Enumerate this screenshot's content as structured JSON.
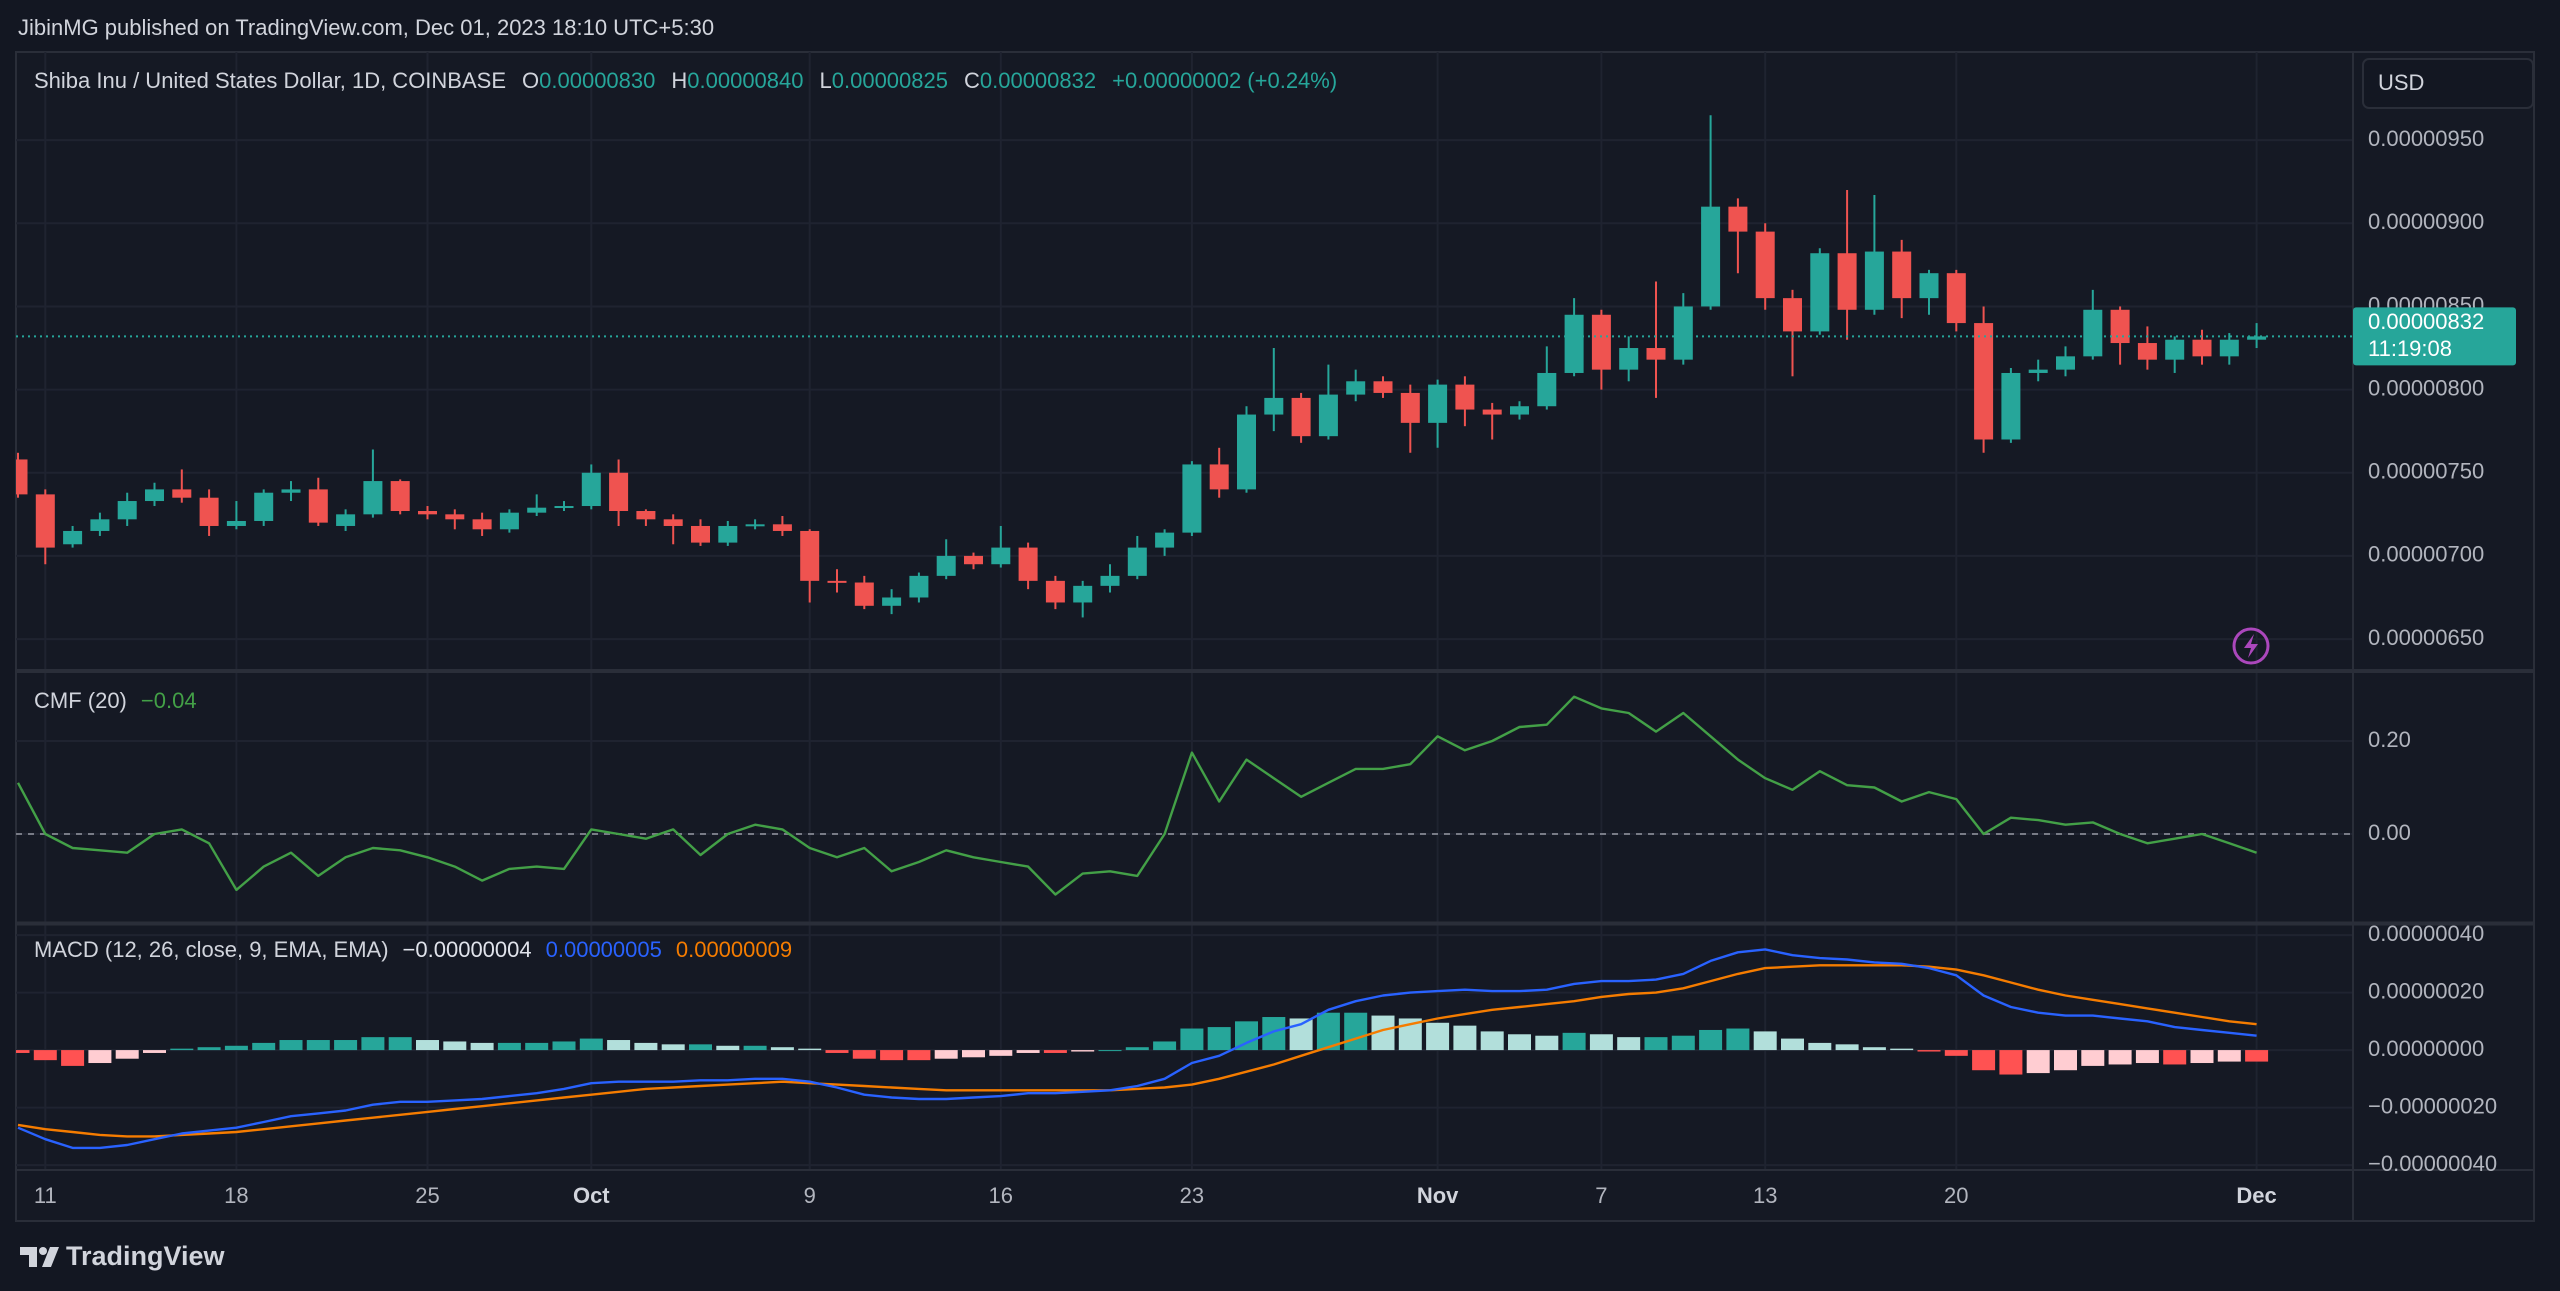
{
  "header": {
    "published": "JibinMG published on TradingView.com, Dec 01, 2023 18:10 UTC+5:30"
  },
  "footer": {
    "brand": "TradingView"
  },
  "chart_data": [
    {
      "type": "candlestick",
      "title": "Shiba Inu / United States Dollar, 1D, COINBASE",
      "ohlc_legend": [
        {
          "label": "O",
          "value": "0.00000830"
        },
        {
          "label": "H",
          "value": "0.00000840"
        },
        {
          "label": "L",
          "value": "0.00000825"
        },
        {
          "label": "C",
          "value": "0.00000832"
        }
      ],
      "change": "+0.00000002 (+0.24%)",
      "currency": "USD",
      "last_price_label": "0.00000832",
      "countdown": "11:19:08",
      "up_color": "#26a69a",
      "down_color": "#ef5350",
      "open": [
        7.58e-06,
        7.37e-06,
        7.07e-06,
        7.15e-06,
        7.22e-06,
        7.33e-06,
        7.4e-06,
        7.35e-06,
        7.18e-06,
        7.21e-06,
        7.38e-06,
        7.4e-06,
        7.18e-06,
        7.25e-06,
        7.45e-06,
        7.27e-06,
        7.25e-06,
        7.22e-06,
        7.16e-06,
        7.26e-06,
        7.29e-06,
        7.3e-06,
        7.5e-06,
        7.27e-06,
        7.22e-06,
        7.18e-06,
        7.08e-06,
        7.18e-06,
        7.19e-06,
        7.15e-06,
        6.85e-06,
        6.84e-06,
        6.7e-06,
        6.75e-06,
        6.88e-06,
        7e-06,
        6.95e-06,
        7.05e-06,
        6.85e-06,
        6.72e-06,
        6.82e-06,
        6.88e-06,
        7.05e-06,
        7.14e-06,
        7.55e-06,
        7.4e-06,
        7.85e-06,
        7.95e-06,
        7.72e-06,
        7.97e-06,
        8.05e-06,
        7.98e-06,
        7.8e-06,
        8.03e-06,
        7.88e-06,
        7.85e-06,
        7.9e-06,
        8.1e-06,
        8.45e-06,
        8.12e-06,
        8.25e-06,
        8.18e-06,
        8.5e-06,
        9.1e-06,
        8.95e-06,
        8.55e-06,
        8.35e-06,
        8.82e-06,
        8.48e-06,
        8.83e-06,
        8.55e-06,
        8.7e-06,
        8.4e-06,
        7.7e-06,
        8.1e-06,
        8.12e-06,
        8.2e-06,
        8.48e-06,
        8.28e-06,
        8.18e-06,
        8.3e-06,
        8.2e-06,
        8.3e-06
      ],
      "high": [
        7.62e-06,
        7.4e-06,
        7.18e-06,
        7.26e-06,
        7.38e-06,
        7.44e-06,
        7.52e-06,
        7.4e-06,
        7.33e-06,
        7.4e-06,
        7.45e-06,
        7.47e-06,
        7.28e-06,
        7.64e-06,
        7.46e-06,
        7.3e-06,
        7.28e-06,
        7.26e-06,
        7.28e-06,
        7.37e-06,
        7.33e-06,
        7.55e-06,
        7.58e-06,
        7.28e-06,
        7.25e-06,
        7.22e-06,
        7.21e-06,
        7.22e-06,
        7.24e-06,
        7.16e-06,
        6.92e-06,
        6.88e-06,
        6.8e-06,
        6.9e-06,
        7.1e-06,
        7.02e-06,
        7.18e-06,
        7.08e-06,
        6.88e-06,
        6.85e-06,
        6.95e-06,
        7.12e-06,
        7.16e-06,
        7.57e-06,
        7.65e-06,
        7.9e-06,
        8.25e-06,
        7.98e-06,
        8.15e-06,
        8.12e-06,
        8.08e-06,
        8.03e-06,
        8.06e-06,
        8.08e-06,
        7.92e-06,
        7.93e-06,
        8.26e-06,
        8.55e-06,
        8.48e-06,
        8.32e-06,
        8.65e-06,
        8.58e-06,
        9.65e-06,
        9.15e-06,
        9e-06,
        8.6e-06,
        8.85e-06,
        9.2e-06,
        9.17e-06,
        8.9e-06,
        8.72e-06,
        8.72e-06,
        8.5e-06,
        8.13e-06,
        8.18e-06,
        8.26e-06,
        8.6e-06,
        8.5e-06,
        8.38e-06,
        8.32e-06,
        8.36e-06,
        8.34e-06,
        8.4e-06
      ],
      "low": [
        7.35e-06,
        6.95e-06,
        7.05e-06,
        7.12e-06,
        7.18e-06,
        7.3e-06,
        7.32e-06,
        7.12e-06,
        7.16e-06,
        7.18e-06,
        7.33e-06,
        7.18e-06,
        7.15e-06,
        7.23e-06,
        7.25e-06,
        7.22e-06,
        7.16e-06,
        7.12e-06,
        7.14e-06,
        7.24e-06,
        7.27e-06,
        7.28e-06,
        7.18e-06,
        7.18e-06,
        7.07e-06,
        7.06e-06,
        7.06e-06,
        7.16e-06,
        7.12e-06,
        6.72e-06,
        6.78e-06,
        6.68e-06,
        6.65e-06,
        6.72e-06,
        6.86e-06,
        6.92e-06,
        6.93e-06,
        6.8e-06,
        6.68e-06,
        6.63e-06,
        6.78e-06,
        6.86e-06,
        7e-06,
        7.12e-06,
        7.35e-06,
        7.38e-06,
        7.75e-06,
        7.68e-06,
        7.7e-06,
        7.93e-06,
        7.95e-06,
        7.62e-06,
        7.65e-06,
        7.78e-06,
        7.7e-06,
        7.82e-06,
        7.88e-06,
        8.08e-06,
        8e-06,
        8.05e-06,
        7.95e-06,
        8.15e-06,
        8.48e-06,
        8.7e-06,
        8.48e-06,
        8.08e-06,
        8.33e-06,
        8.3e-06,
        8.45e-06,
        8.43e-06,
        8.45e-06,
        8.35e-06,
        7.62e-06,
        7.68e-06,
        8.05e-06,
        8.08e-06,
        8.18e-06,
        8.15e-06,
        8.12e-06,
        8.1e-06,
        8.15e-06,
        8.15e-06,
        8.25e-06
      ],
      "close": [
        7.37e-06,
        7.05e-06,
        7.15e-06,
        7.22e-06,
        7.33e-06,
        7.4e-06,
        7.35e-06,
        7.18e-06,
        7.21e-06,
        7.38e-06,
        7.4e-06,
        7.2e-06,
        7.25e-06,
        7.45e-06,
        7.27e-06,
        7.25e-06,
        7.22e-06,
        7.16e-06,
        7.26e-06,
        7.29e-06,
        7.3e-06,
        7.5e-06,
        7.27e-06,
        7.22e-06,
        7.18e-06,
        7.08e-06,
        7.18e-06,
        7.19e-06,
        7.15e-06,
        6.85e-06,
        6.84e-06,
        6.7e-06,
        6.75e-06,
        6.88e-06,
        7e-06,
        6.95e-06,
        7.05e-06,
        6.85e-06,
        6.72e-06,
        6.82e-06,
        6.88e-06,
        7.05e-06,
        7.14e-06,
        7.55e-06,
        7.4e-06,
        7.85e-06,
        7.95e-06,
        7.72e-06,
        7.97e-06,
        8.05e-06,
        7.98e-06,
        7.8e-06,
        8.03e-06,
        7.88e-06,
        7.85e-06,
        7.9e-06,
        8.1e-06,
        8.45e-06,
        8.12e-06,
        8.25e-06,
        8.18e-06,
        8.5e-06,
        9.1e-06,
        8.95e-06,
        8.55e-06,
        8.35e-06,
        8.82e-06,
        8.48e-06,
        8.83e-06,
        8.55e-06,
        8.7e-06,
        8.4e-06,
        7.7e-06,
        8.1e-06,
        8.12e-06,
        8.2e-06,
        8.48e-06,
        8.28e-06,
        8.18e-06,
        8.3e-06,
        8.2e-06,
        8.3e-06,
        8.32e-06
      ],
      "ylim": [
        6.32e-06,
        1.003e-05
      ],
      "yticks": [
        {
          "value": 6.5e-06,
          "label": "0.00000650"
        },
        {
          "value": 7e-06,
          "label": "0.00000700"
        },
        {
          "value": 7.5e-06,
          "label": "0.00000750"
        },
        {
          "value": 8e-06,
          "label": "0.00000800"
        },
        {
          "value": 8.5e-06,
          "label": "0.00000850"
        },
        {
          "value": 9e-06,
          "label": "0.00000900"
        },
        {
          "value": 9.5e-06,
          "label": "0.00000950"
        }
      ],
      "xticks": [
        {
          "value": 1,
          "label": "11"
        },
        {
          "value": 8,
          "label": "18"
        },
        {
          "value": 15,
          "label": "25"
        },
        {
          "value": 21,
          "label": "Oct"
        },
        {
          "value": 29,
          "label": "9"
        },
        {
          "value": 36,
          "label": "16"
        },
        {
          "value": 43,
          "label": "23"
        },
        {
          "value": 52,
          "label": "Nov"
        },
        {
          "value": 58,
          "label": "7"
        },
        {
          "value": 64,
          "label": "13"
        },
        {
          "value": 71,
          "label": "20"
        },
        {
          "value": 82,
          "label": "Dec"
        }
      ],
      "grid": true
    },
    {
      "type": "line",
      "title": "CMF (20)",
      "current": "−0.04",
      "color": "#43a047",
      "values": [
        0.11,
        0.0,
        -0.03,
        -0.035,
        -0.04,
        0.0,
        0.01,
        -0.02,
        -0.12,
        -0.07,
        -0.04,
        -0.09,
        -0.05,
        -0.03,
        -0.035,
        -0.05,
        -0.07,
        -0.1,
        -0.075,
        -0.07,
        -0.075,
        0.01,
        0.0,
        -0.01,
        0.01,
        -0.045,
        0.0,
        0.02,
        0.01,
        -0.03,
        -0.05,
        -0.03,
        -0.08,
        -0.06,
        -0.035,
        -0.05,
        -0.06,
        -0.07,
        -0.13,
        -0.085,
        -0.08,
        -0.09,
        0.0,
        0.175,
        0.07,
        0.16,
        0.12,
        0.08,
        0.11,
        0.14,
        0.14,
        0.15,
        0.21,
        0.18,
        0.2,
        0.23,
        0.235,
        0.295,
        0.27,
        0.26,
        0.22,
        0.26,
        0.21,
        0.16,
        0.12,
        0.095,
        0.135,
        0.105,
        0.1,
        0.07,
        0.09,
        0.075,
        0.0,
        0.035,
        0.03,
        0.02,
        0.025,
        0.0,
        -0.02,
        -0.01,
        0.0,
        -0.02,
        -0.04
      ],
      "baseline": 0,
      "ylim": [
        -0.189,
        0.346
      ],
      "yticks": [
        {
          "value": 0,
          "label": "0.00"
        },
        {
          "value": 0.2,
          "label": "0.20"
        }
      ]
    },
    {
      "type": "macd",
      "title": "MACD (12, 26, close, 9, EMA, EMA)",
      "histogram": {
        "value_label": "−0.00000004",
        "label_color": "#e0e3eb",
        "colors": {
          "up_rising": "#26a69a",
          "up_falling": "#b2dfdb",
          "down_falling": "#ff5252",
          "down_rising": "#ffcdd2"
        },
        "values": [
          -1e-08,
          -3.5e-08,
          -5.5e-08,
          -4.5e-08,
          -3e-08,
          -1e-08,
          5e-09,
          1e-08,
          1.5e-08,
          2.5e-08,
          3.5e-08,
          3.5e-08,
          3.5e-08,
          4.5e-08,
          4.5e-08,
          3.5e-08,
          3e-08,
          2.5e-08,
          2.5e-08,
          2.5e-08,
          3e-08,
          4e-08,
          3.5e-08,
          2.5e-08,
          2e-08,
          2e-08,
          1.5e-08,
          1.5e-08,
          1e-08,
          5e-09,
          -1e-08,
          -3e-08,
          -3.5e-08,
          -3.5e-08,
          -3e-08,
          -2.5e-08,
          -2e-08,
          -1e-08,
          -1e-08,
          -5e-09,
          0,
          1e-08,
          3e-08,
          7.5e-08,
          8e-08,
          1e-07,
          1.15e-07,
          1.1e-07,
          1.3e-07,
          1.3e-07,
          1.2e-07,
          1.1e-07,
          9.5e-08,
          8.5e-08,
          6.5e-08,
          5.5e-08,
          5e-08,
          6e-08,
          5.5e-08,
          4.5e-08,
          4.5e-08,
          5e-08,
          7e-08,
          7.5e-08,
          6.5e-08,
          4e-08,
          2.5e-08,
          2e-08,
          1e-08,
          5e-09,
          -5e-09,
          -2e-08,
          -7e-08,
          -8.5e-08,
          -8e-08,
          -7e-08,
          -5.5e-08,
          -5e-08,
          -4.5e-08,
          -5e-08,
          -4.5e-08,
          -4e-08,
          -4e-08
        ]
      },
      "macd": {
        "value_label": "0.00000005",
        "color": "#2962ff",
        "values": [
          -2.7e-07,
          -3.1e-07,
          -3.4e-07,
          -3.4e-07,
          -3.3e-07,
          -3.1e-07,
          -2.9e-07,
          -2.8e-07,
          -2.7e-07,
          -2.5e-07,
          -2.3e-07,
          -2.2e-07,
          -2.1e-07,
          -1.9e-07,
          -1.8e-07,
          -1.8e-07,
          -1.75e-07,
          -1.7e-07,
          -1.6e-07,
          -1.5e-07,
          -1.35e-07,
          -1.15e-07,
          -1.1e-07,
          -1.1e-07,
          -1.1e-07,
          -1.05e-07,
          -1.05e-07,
          -1e-07,
          -1e-07,
          -1.1e-07,
          -1.3e-07,
          -1.55e-07,
          -1.65e-07,
          -1.7e-07,
          -1.7e-07,
          -1.65e-07,
          -1.6e-07,
          -1.5e-07,
          -1.5e-07,
          -1.45e-07,
          -1.4e-07,
          -1.25e-07,
          -1e-07,
          -4.5e-08,
          -2e-08,
          2.5e-08,
          6.5e-08,
          9e-08,
          1.4e-07,
          1.7e-07,
          1.9e-07,
          2e-07,
          2.05e-07,
          2.1e-07,
          2.05e-07,
          2.05e-07,
          2.1e-07,
          2.3e-07,
          2.4e-07,
          2.4e-07,
          2.45e-07,
          2.65e-07,
          3.1e-07,
          3.4e-07,
          3.5e-07,
          3.3e-07,
          3.2e-07,
          3.15e-07,
          3.05e-07,
          3e-07,
          2.85e-07,
          2.6e-07,
          1.9e-07,
          1.5e-07,
          1.3e-07,
          1.2e-07,
          1.2e-07,
          1.1e-07,
          1e-07,
          8e-08,
          7e-08,
          6e-08,
          5e-08
        ]
      },
      "signal": {
        "value_label": "0.00000009",
        "color": "#f57c00",
        "values": [
          -2.6e-07,
          -2.75e-07,
          -2.85e-07,
          -2.95e-07,
          -3e-07,
          -3e-07,
          -2.95e-07,
          -2.9e-07,
          -2.85e-07,
          -2.75e-07,
          -2.65e-07,
          -2.55e-07,
          -2.45e-07,
          -2.35e-07,
          -2.25e-07,
          -2.15e-07,
          -2.05e-07,
          -1.95e-07,
          -1.85e-07,
          -1.75e-07,
          -1.65e-07,
          -1.55e-07,
          -1.45e-07,
          -1.35e-07,
          -1.3e-07,
          -1.25e-07,
          -1.2e-07,
          -1.15e-07,
          -1.1e-07,
          -1.15e-07,
          -1.2e-07,
          -1.25e-07,
          -1.3e-07,
          -1.35e-07,
          -1.4e-07,
          -1.4e-07,
          -1.4e-07,
          -1.4e-07,
          -1.4e-07,
          -1.4e-07,
          -1.4e-07,
          -1.35e-07,
          -1.3e-07,
          -1.2e-07,
          -1e-07,
          -7.5e-08,
          -5e-08,
          -2e-08,
          1e-08,
          4e-08,
          7e-08,
          9e-08,
          1.1e-07,
          1.25e-07,
          1.4e-07,
          1.5e-07,
          1.6e-07,
          1.7e-07,
          1.85e-07,
          1.95e-07,
          2e-07,
          2.15e-07,
          2.4e-07,
          2.65e-07,
          2.85e-07,
          2.9e-07,
          2.95e-07,
          2.95e-07,
          2.95e-07,
          2.95e-07,
          2.9e-07,
          2.8e-07,
          2.6e-07,
          2.35e-07,
          2.1e-07,
          1.9e-07,
          1.75e-07,
          1.6e-07,
          1.45e-07,
          1.3e-07,
          1.15e-07,
          1e-07,
          9e-08
        ]
      },
      "ylim": [
        -4.17e-07,
        4.35e-07
      ],
      "yticks": [
        {
          "value": -4e-07,
          "label": "−0.00000040"
        },
        {
          "value": -2e-07,
          "label": "−0.00000020"
        },
        {
          "value": 0,
          "label": "0.00000000"
        },
        {
          "value": 2e-07,
          "label": "0.00000020"
        },
        {
          "value": 4e-07,
          "label": "0.00000040"
        }
      ]
    }
  ]
}
